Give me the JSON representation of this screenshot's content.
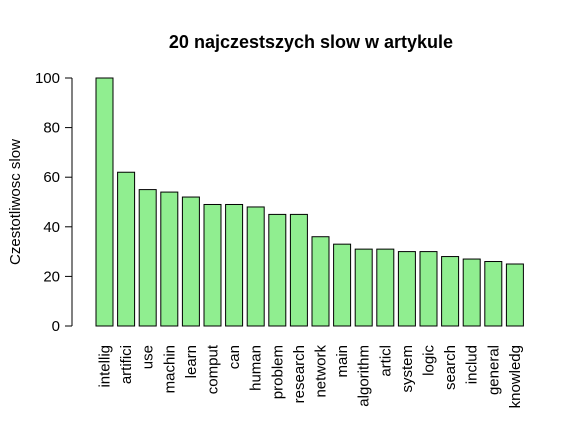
{
  "chart_data": {
    "type": "bar",
    "title": "20 najczestszych slow w artykule",
    "xlabel": "",
    "ylabel": "Czestotliwosc slow",
    "ylim": [
      0,
      100
    ],
    "yticks": [
      "0",
      "20",
      "40",
      "60",
      "80",
      "100"
    ],
    "bar_color": "#90EE90",
    "categories": [
      "intellig",
      "artifici",
      "use",
      "machin",
      "learn",
      "comput",
      "can",
      "human",
      "problem",
      "research",
      "network",
      "main",
      "algorithm",
      "articl",
      "system",
      "logic",
      "search",
      "includ",
      "general",
      "knowledg"
    ],
    "values": [
      100,
      62,
      55,
      54,
      52,
      49,
      49,
      48,
      45,
      45,
      36,
      33,
      31,
      31,
      30,
      30,
      28,
      27,
      26,
      25
    ]
  }
}
